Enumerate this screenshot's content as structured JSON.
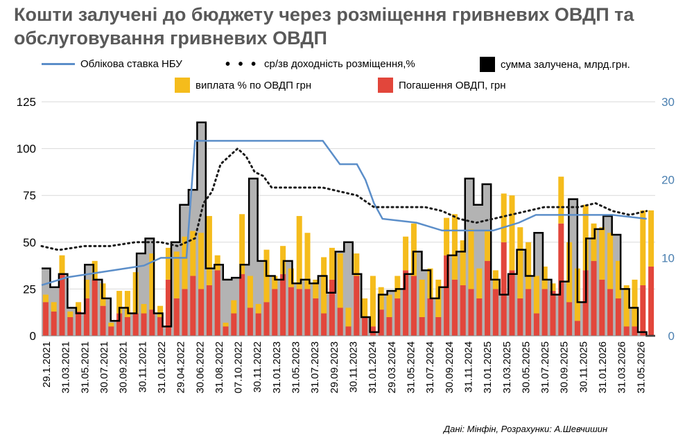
{
  "title": "Кошти залучені до бюджету через розміщення гривневих ОВДП та обслуговування гривневих ОВДП",
  "legend": {
    "nbu": "Облікова ставка НБУ",
    "yield": "ср/зв доходність розміщення,%",
    "sum": "сумма залучена, млрд.грн.",
    "interest": "виплата % по ОВДП грн",
    "repay": "Погашення ОВДП, грн"
  },
  "source": "Дані: Мінфін, Розрахунки: А.Шевчишин",
  "colors": {
    "nbu": "#5b8ec9",
    "yield": "#1a1a1a",
    "sum_fill": "#b3b3b3",
    "sum_line": "#000000",
    "interest": "#f5bc1c",
    "repay": "#e2463b",
    "grid": "#d9d9d9",
    "right_axis": "#4a7fb0"
  },
  "chart_data": {
    "type": "bar",
    "title": "Кошти залучені до бюджету через розміщення гривневих ОВДП та обслуговування гривневих ОВДП",
    "xlabel": "",
    "ylabel": "",
    "ylim": [
      0,
      125
    ],
    "y_ticks": [
      0,
      25,
      50,
      75,
      100,
      125
    ],
    "y2lim": [
      0,
      30
    ],
    "y2_ticks": [
      0,
      10,
      20,
      30
    ],
    "x_tick_labels": [
      "29.1.2021",
      "31.03.2021",
      "31.05.2021",
      "30.07.2021",
      "30.09.2021",
      "30.11.2021",
      "31.01.2022",
      "29.04.2022",
      "30.06.2022",
      "31.08.2022",
      "07.10.2022",
      "30.11.2022",
      "31.01.2023",
      "31.05.2023",
      "31.07.2023",
      "29.09.2023",
      "30.11.2023",
      "31.01.2024",
      "29.03.2024",
      "31.05.2024",
      "31.07.2024",
      "30.09.2024",
      "31.11.2024",
      "31.01.2025",
      "31.03.2025",
      "30.05.2025",
      "31.07.2025",
      "30.09.2025",
      "30.11.2025",
      "31.01.2026",
      "31.03.2026",
      "31.05.2026"
    ],
    "series": [
      {
        "name": "Погашення ОВДП, грн",
        "type": "bar",
        "axis": "left",
        "values": [
          18,
          13,
          33,
          10,
          13,
          20,
          30,
          16,
          5,
          12,
          10,
          12,
          12,
          14,
          10,
          30,
          20,
          25,
          32,
          25,
          27,
          35,
          5,
          12,
          33,
          15,
          12,
          18,
          25,
          33,
          26,
          25,
          25,
          20,
          12,
          30,
          15,
          5,
          32,
          10,
          5,
          14,
          10,
          20,
          35,
          32,
          10,
          20,
          10,
          43,
          30,
          27,
          25,
          20,
          40,
          25,
          50,
          35,
          20,
          25,
          12,
          25,
          24,
          60,
          18,
          8,
          35,
          40,
          30,
          25,
          20,
          5,
          5,
          27,
          37
        ]
      },
      {
        "name": "виплата % по ОВДП грн",
        "type": "bar",
        "axis": "left",
        "values": [
          4,
          5,
          10,
          3,
          5,
          10,
          10,
          12,
          2,
          12,
          14,
          22,
          5,
          30,
          6,
          17,
          25,
          28,
          24,
          30,
          37,
          8,
          2,
          7,
          32,
          17,
          5,
          28,
          7,
          15,
          10,
          39,
          30,
          10,
          30,
          17,
          29,
          10,
          12,
          10,
          27,
          12,
          12,
          12,
          18,
          28,
          20,
          16,
          20,
          20,
          35,
          24,
          32,
          16,
          16,
          10,
          26,
          40,
          38,
          25,
          20,
          12,
          4,
          25,
          32,
          28,
          35,
          20,
          28,
          30,
          20,
          22,
          25,
          40,
          30
        ]
      },
      {
        "name": "сумма залучена, млрд.грн.",
        "type": "step",
        "axis": "left",
        "values": [
          36,
          26,
          33,
          15,
          12,
          38,
          30,
          20,
          8,
          15,
          12,
          44,
          52,
          12,
          5,
          50,
          70,
          78,
          114,
          36,
          38,
          30,
          31,
          38,
          84,
          40,
          32,
          30,
          40,
          28,
          30,
          28,
          32,
          23,
          45,
          50,
          33,
          10,
          2,
          22,
          24,
          25,
          33,
          45,
          35,
          20,
          26,
          43,
          45,
          84,
          70,
          81,
          30,
          22,
          33,
          46,
          32,
          55,
          30,
          22,
          29,
          73,
          18,
          52,
          57,
          64,
          54,
          25,
          15,
          2,
          0
        ]
      },
      {
        "name": "Облікова ставка НБУ",
        "type": "line",
        "axis": "right",
        "points": [
          [
            0,
            6.5
          ],
          [
            3,
            7.5
          ],
          [
            6,
            8
          ],
          [
            9,
            8.5
          ],
          [
            12,
            9
          ],
          [
            14,
            10
          ],
          [
            17,
            10
          ],
          [
            18,
            25
          ],
          [
            28,
            25
          ],
          [
            33,
            25
          ],
          [
            35,
            22
          ],
          [
            37,
            22
          ],
          [
            38,
            20
          ],
          [
            39,
            17
          ],
          [
            40,
            15
          ],
          [
            44,
            14.5
          ],
          [
            47,
            13.5
          ],
          [
            53,
            13.5
          ],
          [
            56,
            14.5
          ],
          [
            58,
            15.5
          ],
          [
            61,
            15.5
          ],
          [
            67,
            15.5
          ],
          [
            71,
            15
          ]
        ]
      },
      {
        "name": "ср/зв доходність розміщення,%",
        "type": "dotted",
        "axis": "right",
        "points": [
          [
            0,
            11.5
          ],
          [
            2,
            11
          ],
          [
            5,
            11.5
          ],
          [
            8,
            11.5
          ],
          [
            11,
            12
          ],
          [
            14,
            12
          ],
          [
            16,
            11.5
          ],
          [
            18,
            12.5
          ],
          [
            19,
            17
          ],
          [
            20,
            18.5
          ],
          [
            21,
            22
          ],
          [
            22,
            23
          ],
          [
            23,
            24
          ],
          [
            24,
            23
          ],
          [
            25,
            21
          ],
          [
            26,
            20.5
          ],
          [
            27,
            19
          ],
          [
            29,
            19
          ],
          [
            31,
            19
          ],
          [
            33,
            19
          ],
          [
            35,
            18.5
          ],
          [
            37,
            18
          ],
          [
            39,
            16.5
          ],
          [
            41,
            16.5
          ],
          [
            43,
            16.5
          ],
          [
            45,
            16.5
          ],
          [
            47,
            16
          ],
          [
            49,
            15
          ],
          [
            51,
            14.5
          ],
          [
            53,
            15
          ],
          [
            55,
            15.5
          ],
          [
            57,
            16
          ],
          [
            59,
            16.5
          ],
          [
            61,
            16.5
          ],
          [
            63,
            16.5
          ],
          [
            65,
            17
          ],
          [
            67,
            16
          ],
          [
            69,
            15.5
          ],
          [
            71,
            16
          ]
        ]
      }
    ],
    "legend_placement": "top",
    "grid": true
  }
}
